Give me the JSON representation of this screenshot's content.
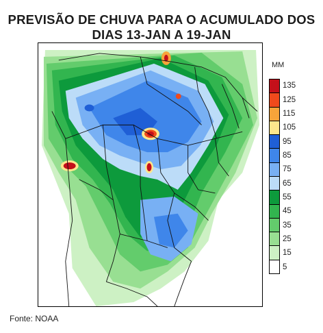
{
  "title": {
    "line1": "PREVISÃO DE CHUVA PARA O ACUMULADO DOS",
    "line2": "DIAS 13-JAN A 19-JAN"
  },
  "legend": {
    "unit": "MM",
    "levels": [
      {
        "label": "135",
        "color": "#c4101a"
      },
      {
        "label": "125",
        "color": "#f04a1c"
      },
      {
        "label": "115",
        "color": "#f7a43a"
      },
      {
        "label": "105",
        "color": "#fde78c"
      },
      {
        "label": "95",
        "color": "#1f5fd6"
      },
      {
        "label": "85",
        "color": "#3f86ea"
      },
      {
        "label": "75",
        "color": "#78b0f4"
      },
      {
        "label": "65",
        "color": "#bcdcf8"
      },
      {
        "label": "55",
        "color": "#0d9a3c"
      },
      {
        "label": "45",
        "color": "#32b54f"
      },
      {
        "label": "35",
        "color": "#63cc6c"
      },
      {
        "label": "25",
        "color": "#98df92"
      },
      {
        "label": "15",
        "color": "#cdf1c4"
      },
      {
        "label": "5",
        "color": "#ffffff"
      }
    ]
  },
  "source": "Fonte: NOAA"
}
